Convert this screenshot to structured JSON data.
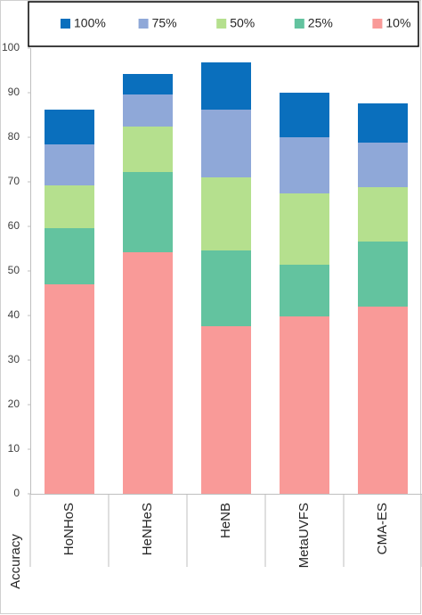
{
  "chart_data": {
    "type": "bar",
    "stacked": true,
    "y_label": "Accuracy",
    "categories": [
      "HoNHoS",
      "HeNHeS",
      "HeNB",
      "MetaUVFS",
      "CMA-ES"
    ],
    "series": [
      {
        "name": "10%",
        "color": "#f99a98",
        "values": [
          47,
          54.2,
          37.6,
          39.8,
          42
        ]
      },
      {
        "name": "25%",
        "color": "#63c39f",
        "values": [
          12.6,
          18,
          17,
          11.6,
          14.6
        ]
      },
      {
        "name": "50%",
        "color": "#b5e08e",
        "values": [
          9.6,
          10.2,
          16.4,
          16,
          12.2
        ]
      },
      {
        "name": "75%",
        "color": "#8fa8d8",
        "values": [
          9.2,
          7.2,
          15.2,
          12.6,
          10
        ]
      },
      {
        "name": "100%",
        "color": "#0a6fbd",
        "values": [
          7.8,
          4.6,
          10.6,
          10,
          8.8
        ]
      }
    ],
    "ylim": [
      0,
      100
    ],
    "yticks": [
      0,
      10,
      20,
      30,
      40,
      50,
      60,
      70,
      80,
      90,
      100
    ],
    "grid": false
  }
}
